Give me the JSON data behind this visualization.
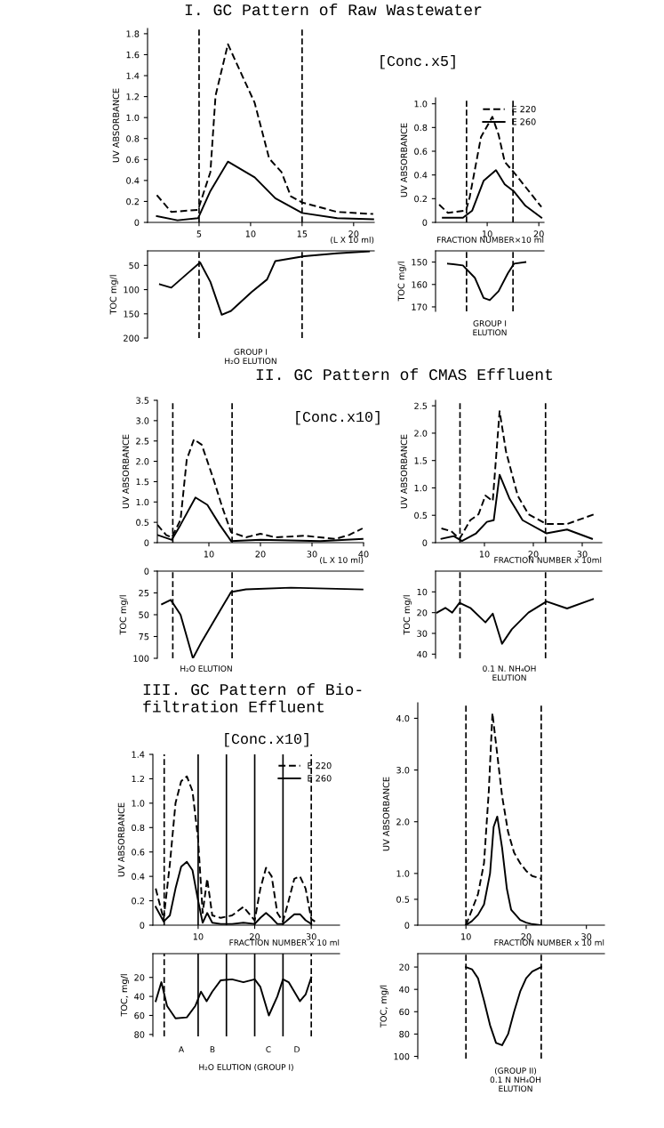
{
  "chart_data": [
    {
      "type": "line",
      "title": "I. GC Pattern of Raw Wastewater",
      "ylabel": "UV ABSORBANCE",
      "xlabel": "(L X 10 ml)",
      "xlim": [
        0,
        22
      ],
      "xticks": [
        5,
        10,
        15,
        20
      ],
      "ylim": [
        0,
        1.85
      ],
      "yticks": [
        0,
        0.2,
        0.4,
        0.6,
        0.8,
        {
          "value": 1,
          "label": "1.0"
        },
        1.2,
        1.4,
        1.6,
        1.8
      ],
      "annotations": [
        "[Conc.x5]"
      ],
      "ref_lines": [
        {
          "axis": "x",
          "value": 5,
          "line_style": "dashed"
        },
        {
          "axis": "x",
          "value": 15,
          "line_style": "dashed"
        }
      ],
      "series": [
        {
          "color": "#000000",
          "line_style": "dashed",
          "x": [
            0.9,
            2.3,
            4.9,
            6.1,
            6.6,
            7.8,
            9.0,
            10.4,
            11.8,
            13.0,
            13.9,
            15.0,
            18.4,
            21.9
          ],
          "values": [
            0.26,
            0.1,
            0.12,
            0.48,
            1.21,
            1.7,
            1.44,
            1.14,
            0.61,
            0.48,
            0.25,
            0.19,
            0.1,
            0.08
          ]
        },
        {
          "color": "#000000",
          "line_style": "solid",
          "x": [
            0.9,
            2.9,
            4.9,
            6.1,
            7.8,
            10.4,
            12.4,
            15.0,
            18.4,
            21.9
          ],
          "values": [
            0.06,
            0.02,
            0.04,
            0.3,
            0.58,
            0.43,
            0.23,
            0.09,
            0.04,
            0.03
          ]
        }
      ]
    },
    {
      "type": "line",
      "ylabel": "TOC mg/l",
      "tick_labels": "y",
      "xlim": [
        0,
        22
      ],
      "ylim": [
        200,
        20
      ],
      "yticks": [
        50,
        100,
        150,
        200
      ],
      "annotations": [
        "GROUP I\nH₂O ELUTION"
      ],
      "ref_lines": [
        {
          "axis": "x",
          "value": 5,
          "line_style": "dashed"
        },
        {
          "axis": "x",
          "value": 15,
          "line_style": "dashed"
        }
      ],
      "series": [
        {
          "color": "#000000",
          "line_style": "solid",
          "x": [
            1.2,
            2.3,
            3.8,
            5.1,
            6.1,
            7.2,
            8.1,
            10.1,
            11.6,
            12.4,
            15.2,
            18.4,
            21.5
          ],
          "values": [
            89,
            96,
            68,
            44,
            84,
            152,
            144,
            105,
            79,
            41,
            31,
            25,
            21
          ]
        }
      ]
    },
    {
      "type": "line",
      "ylabel": "UV ABSORBANCE",
      "xlabel": "FRACTION NUMBER×10 ml",
      "xlim": [
        0,
        21
      ],
      "xticks": [
        10,
        20
      ],
      "ylim": [
        0,
        1.05
      ],
      "yticks": [
        0,
        0.2,
        0.4,
        0.6,
        0.8,
        {
          "value": 1,
          "label": "1.0"
        }
      ],
      "legend": "top right",
      "ref_lines": [
        {
          "axis": "x",
          "value": 6,
          "line_style": "dashed"
        },
        {
          "axis": "x",
          "value": 15,
          "line_style": "dashed"
        }
      ],
      "series": [
        {
          "name": "E 220",
          "color": "#000000",
          "line_style": "dashed",
          "x": [
            0.7,
            2.4,
            5.9,
            6.6,
            8.8,
            11.0,
            12.2,
            13.4,
            15.2,
            17.4,
            20.5
          ],
          "values": [
            0.15,
            0.08,
            0.1,
            0.21,
            0.72,
            0.89,
            0.74,
            0.51,
            0.42,
            0.3,
            0.13
          ]
        },
        {
          "name": "E 260",
          "color": "#000000",
          "line_style": "solid",
          "x": [
            1.4,
            5.3,
            7.1,
            9.3,
            11.7,
            13.4,
            15.2,
            17.4,
            20.5
          ],
          "values": [
            0.04,
            0.04,
            0.1,
            0.35,
            0.44,
            0.32,
            0.26,
            0.14,
            0.04
          ]
        }
      ]
    },
    {
      "type": "line",
      "ylabel": "TOC mg/l",
      "tick_labels": "y",
      "xlim": [
        0,
        21
      ],
      "ylim": [
        172,
        145
      ],
      "yticks": [
        150,
        160,
        170
      ],
      "annotations": [
        "GROUP I\nELUTION"
      ],
      "ref_lines": [
        {
          "axis": "x",
          "value": 6,
          "line_style": "dashed"
        },
        {
          "axis": "x",
          "value": 15,
          "line_style": "dashed"
        }
      ],
      "series": [
        {
          "color": "#000000",
          "line_style": "solid",
          "x": [
            2.4,
            5.3,
            7.6,
            9.3,
            10.5,
            12.2,
            14.0,
            15.2,
            17.4
          ],
          "values": [
            150.7,
            151.5,
            157,
            166,
            167,
            163,
            155,
            150.7,
            150
          ]
        }
      ]
    },
    {
      "type": "line",
      "title": "II. GC Pattern of CMAS Effluent",
      "ylabel": "UV ABSORBANCE",
      "xlabel": "(L X 10 ml)",
      "xlim": [
        0,
        40
      ],
      "xticks": [
        10,
        20,
        30,
        40
      ],
      "ylim": [
        0,
        3.5
      ],
      "yticks": [
        0,
        0.5,
        {
          "value": 1,
          "label": "1.0"
        },
        1.5,
        {
          "value": 2,
          "label": "2.0"
        },
        2.5,
        {
          "value": 3,
          "label": "3.0"
        },
        3.5
      ],
      "annotations": [
        "[Conc.x10]"
      ],
      "ref_lines": [
        {
          "axis": "x",
          "value": 3,
          "line_style": "dashed"
        },
        {
          "axis": "x",
          "value": 14.5,
          "line_style": "dashed"
        }
      ],
      "series": [
        {
          "color": "#000000",
          "line_style": "dashed",
          "x": [
            0,
            1.7,
            2.8,
            4.5,
            5.7,
            7.1,
            8.6,
            10.9,
            12.6,
            14.3,
            17.2,
            20,
            22.9,
            28.6,
            34.5,
            37.2,
            39.8
          ],
          "values": [
            0.44,
            0.19,
            0.13,
            0.56,
            2.04,
            2.54,
            2.41,
            1.56,
            0.87,
            0.26,
            0.13,
            0.22,
            0.13,
            0.17,
            0.09,
            0.19,
            0.35
          ]
        },
        {
          "color": "#000000",
          "line_style": "solid",
          "x": [
            0,
            2.8,
            4.5,
            7.4,
            9.7,
            12.1,
            14.3,
            20,
            31.6,
            39.8
          ],
          "values": [
            0.19,
            0.07,
            0.44,
            1.11,
            0.93,
            0.44,
            0.04,
            0.07,
            0.04,
            0.09
          ]
        }
      ]
    },
    {
      "type": "line",
      "ylabel": "TOC mg/l",
      "tick_labels": "y",
      "xlim": [
        0,
        40
      ],
      "ylim": [
        100,
        0
      ],
      "yticks": [
        0,
        25,
        50,
        75,
        100
      ],
      "annotations": [
        "H₂O ELUTION"
      ],
      "ref_lines": [
        {
          "axis": "x",
          "value": 3,
          "line_style": "dashed"
        },
        {
          "axis": "x",
          "value": 14.5,
          "line_style": "dashed"
        }
      ],
      "series": [
        {
          "color": "#000000",
          "line_style": "solid",
          "x": [
            0.9,
            2.6,
            4.5,
            6.9,
            8.6,
            12.1,
            14.3,
            17.2,
            25.9,
            39.8
          ],
          "values": [
            38,
            33,
            50,
            100,
            81,
            46,
            24,
            21,
            19,
            21
          ]
        }
      ]
    },
    {
      "type": "line",
      "ylabel": "UV ABSORBANCE",
      "xlabel": "FRACTION NUMBER x 10ml",
      "xlim": [
        0,
        34
      ],
      "xticks": [
        10,
        20,
        30
      ],
      "ylim": [
        0,
        2.6
      ],
      "yticks": [
        0,
        0.5,
        {
          "value": 1,
          "label": "1.0"
        },
        1.5,
        {
          "value": 2,
          "label": "2.0"
        },
        2.5
      ],
      "ref_lines": [
        {
          "axis": "x",
          "value": 5,
          "line_style": "dashed"
        },
        {
          "axis": "x",
          "value": 22.5,
          "line_style": "dashed"
        }
      ],
      "series": [
        {
          "color": "#000000",
          "line_style": "dashed",
          "x": [
            1.2,
            3.2,
            4.9,
            7.1,
            8.8,
            10.2,
            11.7,
            13.1,
            14.4,
            16.8,
            19.0,
            22.7,
            26.9,
            32.5
          ],
          "values": [
            0.26,
            0.21,
            0.07,
            0.41,
            0.52,
            0.86,
            0.76,
            2.4,
            1.67,
            0.86,
            0.52,
            0.34,
            0.34,
            0.52
          ]
        },
        {
          "color": "#000000",
          "line_style": "solid",
          "x": [
            1.2,
            3.7,
            5.4,
            8.3,
            10.5,
            11.9,
            13.1,
            15.1,
            17.8,
            22.7,
            26.9,
            32
          ],
          "values": [
            0.07,
            0.12,
            0.03,
            0.17,
            0.38,
            0.41,
            1.24,
            0.81,
            0.41,
            0.17,
            0.24,
            0.07
          ]
        }
      ]
    },
    {
      "type": "line",
      "ylabel": "TOC mg/l",
      "tick_labels": "y",
      "xlim": [
        0,
        34
      ],
      "ylim": [
        42,
        0
      ],
      "yticks": [
        10,
        20,
        30,
        40
      ],
      "annotations": [
        "0.1 N. NH₄OH\nELUTION"
      ],
      "ref_lines": [
        {
          "axis": "x",
          "value": 5,
          "line_style": "dashed"
        },
        {
          "axis": "x",
          "value": 22.5,
          "line_style": "dashed"
        }
      ],
      "series": [
        {
          "color": "#000000",
          "line_style": "solid",
          "x": [
            0.3,
            2,
            3.4,
            4.9,
            7.1,
            10.2,
            11.7,
            13.6,
            15.6,
            19,
            22.7,
            26.9,
            32.2
          ],
          "values": [
            20,
            17.7,
            20,
            15.3,
            17.7,
            24.7,
            20.5,
            35,
            28,
            20,
            14.6,
            18,
            13.5
          ]
        }
      ]
    },
    {
      "type": "line",
      "title": "III. GC Pattern of Bio-\nfiltration Effluent",
      "ylabel": "UV ABSORBANCE",
      "xlabel": "FRACTION NUMBER x 10 ml",
      "xlim": [
        2,
        35
      ],
      "xticks": [
        10,
        20,
        30
      ],
      "ylim": [
        0,
        1.4
      ],
      "yticks": [
        0,
        0.2,
        0.4,
        0.6,
        0.8,
        {
          "value": 1,
          "label": "1.0"
        },
        1.2,
        1.4
      ],
      "legend": "top right",
      "annotations": [
        "[Conc.x10]"
      ],
      "ref_lines": [
        {
          "axis": "x",
          "value": 4,
          "line_style": "dashed"
        },
        {
          "axis": "x",
          "value": 10,
          "line_style": "solid"
        },
        {
          "axis": "x",
          "value": 15,
          "line_style": "solid"
        },
        {
          "axis": "x",
          "value": 20,
          "line_style": "solid"
        },
        {
          "axis": "x",
          "value": 25,
          "line_style": "solid"
        },
        {
          "axis": "x",
          "value": 30,
          "line_style": "dashed"
        }
      ],
      "series": [
        {
          "name": "E 220",
          "color": "#000000",
          "line_style": "dashed",
          "x": [
            2.5,
            3.9,
            5,
            6,
            7,
            8,
            9,
            10,
            10.8,
            11.6,
            12.5,
            14,
            16,
            18,
            20,
            21,
            22,
            23,
            24,
            25,
            26,
            27,
            28,
            29,
            30,
            31
          ],
          "values": [
            0.3,
            0.05,
            0.5,
            1.0,
            1.18,
            1.22,
            1.1,
            0.7,
            0.1,
            0.38,
            0.08,
            0.06,
            0.08,
            0.15,
            0.04,
            0.3,
            0.47,
            0.4,
            0.1,
            0.03,
            0.2,
            0.38,
            0.4,
            0.3,
            0.05,
            0.02
          ]
        },
        {
          "name": "E 260",
          "color": "#000000",
          "line_style": "solid",
          "x": [
            2.5,
            3.9,
            5,
            6,
            7,
            8,
            9,
            10,
            10.8,
            11.6,
            12.5,
            14,
            16,
            18,
            20,
            21,
            22,
            23,
            24,
            25,
            26,
            27,
            28,
            29,
            30
          ],
          "values": [
            0.15,
            0.03,
            0.08,
            0.3,
            0.48,
            0.52,
            0.45,
            0.2,
            0.02,
            0.1,
            0.02,
            0.01,
            0.01,
            0.02,
            0.01,
            0.06,
            0.1,
            0.06,
            0.01,
            0.01,
            0.05,
            0.09,
            0.09,
            0.04,
            0.01
          ]
        }
      ]
    },
    {
      "type": "line",
      "ylabel": "TOC, mg/l",
      "tick_labels": "y",
      "xlim": [
        2,
        35
      ],
      "ylim": [
        82,
        -5
      ],
      "yticks": [
        20,
        40,
        60,
        80
      ],
      "annotations": [
        "A",
        "B",
        "C",
        "D",
        "H₂O ELUTION (GROUP I)"
      ],
      "ref_lines": [
        {
          "axis": "x",
          "value": 4,
          "line_style": "dashed"
        },
        {
          "axis": "x",
          "value": 10,
          "line_style": "solid"
        },
        {
          "axis": "x",
          "value": 15,
          "line_style": "solid"
        },
        {
          "axis": "x",
          "value": 20,
          "line_style": "solid"
        },
        {
          "axis": "x",
          "value": 25,
          "line_style": "solid"
        },
        {
          "axis": "x",
          "value": 30,
          "line_style": "dashed"
        }
      ],
      "series": [
        {
          "color": "#000000",
          "line_style": "solid",
          "x": [
            2.5,
            3.5,
            4.5,
            6,
            8,
            9.5,
            10.5,
            11.5,
            12.5,
            14,
            16,
            18,
            20,
            21,
            22.5,
            24,
            25,
            26,
            28,
            29,
            30
          ],
          "values": [
            45,
            25,
            50,
            63,
            62,
            50,
            35,
            45,
            35,
            23,
            22,
            25,
            22,
            30,
            60,
            40,
            22,
            25,
            45,
            38,
            20
          ]
        }
      ]
    },
    {
      "type": "line",
      "ylabel": "UV ABSORBANCE",
      "xlabel": "FRACTION NUMBER x 10 ml",
      "xlim": [
        2,
        33
      ],
      "xticks": [
        10,
        20,
        30
      ],
      "ylim": [
        0,
        4.3
      ],
      "yticks": [
        0,
        0.5,
        {
          "value": 1,
          "label": "1.0"
        },
        {
          "value": 2,
          "label": "2.0"
        },
        {
          "value": 3,
          "label": "3.0"
        },
        {
          "value": 4,
          "label": "4.0"
        }
      ],
      "ref_lines": [
        {
          "axis": "x",
          "value": 10,
          "line_style": "dashed"
        },
        {
          "axis": "x",
          "value": 22.5,
          "line_style": "dashed"
        }
      ],
      "series": [
        {
          "color": "#000000",
          "line_style": "dashed",
          "x": [
            10,
            11,
            12,
            13,
            13.8,
            14.4,
            15,
            16,
            17,
            18,
            19,
            20,
            21,
            22.5
          ],
          "values": [
            0,
            0.3,
            0.6,
            1.2,
            2.6,
            4.1,
            3.5,
            2.5,
            1.8,
            1.4,
            1.2,
            1.05,
            0.95,
            0.9
          ]
        },
        {
          "color": "#000000",
          "line_style": "solid",
          "x": [
            10,
            11,
            12,
            13,
            14,
            14.6,
            15.2,
            16,
            16.8,
            17.5,
            19,
            20,
            21,
            22.5
          ],
          "values": [
            0,
            0.08,
            0.2,
            0.4,
            1.0,
            1.9,
            2.1,
            1.5,
            0.7,
            0.3,
            0.1,
            0.05,
            0.02,
            0
          ]
        }
      ]
    },
    {
      "type": "line",
      "ylabel": "TOC, mg/l",
      "tick_labels": "y",
      "xlim": [
        2,
        33
      ],
      "ylim": [
        102,
        8
      ],
      "yticks": [
        20,
        40,
        60,
        80,
        100
      ],
      "annotations": [
        "(GROUP II)\n0.1 N NH₄OH\nELUTION"
      ],
      "ref_lines": [
        {
          "axis": "x",
          "value": 10,
          "line_style": "dashed"
        },
        {
          "axis": "x",
          "value": 22.5,
          "line_style": "dashed"
        }
      ],
      "series": [
        {
          "color": "#000000",
          "line_style": "solid",
          "x": [
            10,
            11,
            12,
            13,
            14,
            15,
            16,
            17,
            18,
            19,
            20,
            21,
            22.5
          ],
          "values": [
            20,
            22,
            30,
            50,
            72,
            88,
            90,
            80,
            60,
            42,
            30,
            24,
            20
          ]
        }
      ]
    }
  ]
}
